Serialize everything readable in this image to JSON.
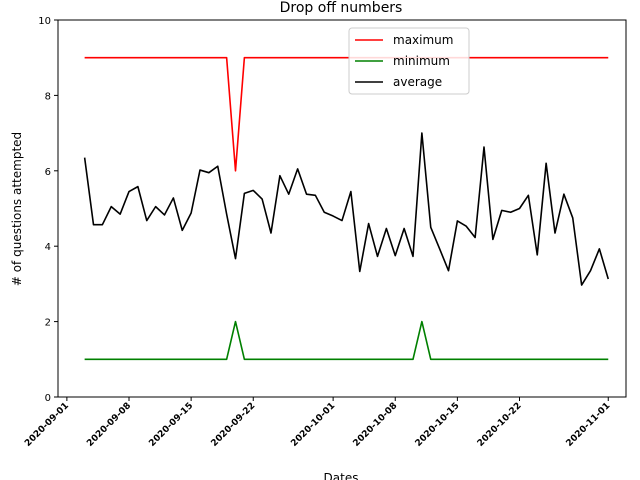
{
  "chart_data": {
    "type": "line",
    "title": "Drop off numbers",
    "xlabel": "Dates",
    "ylabel": "# of questions attempted",
    "ylim": [
      0,
      10
    ],
    "xlim": [
      "2020-08-31",
      "2020-11-03"
    ],
    "yticks": [
      "0",
      "2",
      "4",
      "6",
      "8",
      "10"
    ],
    "xticks": [
      "2020-09-01",
      "2020-09-08",
      "2020-09-15",
      "2020-09-22",
      "2020-10-01",
      "2020-10-08",
      "2020-10-15",
      "2020-10-22",
      "2020-11-01"
    ],
    "legend_position": "top-center",
    "grid": false,
    "x": [
      "2020-09-03",
      "2020-09-04",
      "2020-09-05",
      "2020-09-06",
      "2020-09-07",
      "2020-09-08",
      "2020-09-09",
      "2020-09-10",
      "2020-09-11",
      "2020-09-12",
      "2020-09-13",
      "2020-09-14",
      "2020-09-15",
      "2020-09-16",
      "2020-09-17",
      "2020-09-18",
      "2020-09-19",
      "2020-09-20",
      "2020-09-21",
      "2020-09-22",
      "2020-09-23",
      "2020-09-24",
      "2020-09-25",
      "2020-09-26",
      "2020-09-27",
      "2020-09-28",
      "2020-09-29",
      "2020-09-30",
      "2020-10-01",
      "2020-10-02",
      "2020-10-03",
      "2020-10-04",
      "2020-10-05",
      "2020-10-06",
      "2020-10-07",
      "2020-10-08",
      "2020-10-09",
      "2020-10-10",
      "2020-10-11",
      "2020-10-12",
      "2020-10-13",
      "2020-10-14",
      "2020-10-15",
      "2020-10-16",
      "2020-10-17",
      "2020-10-18",
      "2020-10-19",
      "2020-10-20",
      "2020-10-21",
      "2020-10-22",
      "2020-10-23",
      "2020-10-24",
      "2020-10-25",
      "2020-10-26",
      "2020-10-27",
      "2020-10-28",
      "2020-10-29",
      "2020-10-30",
      "2020-10-31",
      "2020-11-01"
    ],
    "series": [
      {
        "name": "maximum",
        "color": "#ff0000",
        "values": [
          9,
          9,
          9,
          9,
          9,
          9,
          9,
          9,
          9,
          9,
          9,
          9,
          9,
          9,
          9,
          9,
          9,
          6,
          9,
          9,
          9,
          9,
          9,
          9,
          9,
          9,
          9,
          9,
          9,
          9,
          9,
          9,
          9,
          9,
          9,
          9,
          9,
          9,
          9,
          9,
          9,
          9,
          9,
          9,
          9,
          9,
          9,
          9,
          9,
          9,
          9,
          9,
          9,
          9,
          9,
          9,
          9,
          9,
          9,
          9
        ]
      },
      {
        "name": "minimum",
        "color": "#008000",
        "values": [
          1,
          1,
          1,
          1,
          1,
          1,
          1,
          1,
          1,
          1,
          1,
          1,
          1,
          1,
          1,
          1,
          1,
          2,
          1,
          1,
          1,
          1,
          1,
          1,
          1,
          1,
          1,
          1,
          1,
          1,
          1,
          1,
          1,
          1,
          1,
          1,
          1,
          1,
          2,
          1,
          1,
          1,
          1,
          1,
          1,
          1,
          1,
          1,
          1,
          1,
          1,
          1,
          1,
          1,
          1,
          1,
          1,
          1,
          1,
          1
        ]
      },
      {
        "name": "average",
        "color": "#000000",
        "values": [
          6.35,
          4.57,
          4.57,
          5.05,
          4.85,
          5.45,
          5.58,
          4.68,
          5.05,
          4.83,
          5.28,
          4.42,
          4.88,
          6.02,
          5.95,
          6.12,
          4.85,
          3.67,
          5.4,
          5.48,
          5.25,
          4.35,
          5.87,
          5.38,
          6.05,
          5.38,
          5.35,
          4.9,
          4.8,
          4.68,
          5.45,
          3.33,
          4.6,
          3.73,
          4.47,
          3.75,
          4.47,
          3.73,
          7.0,
          4.5,
          3.93,
          3.35,
          4.67,
          4.53,
          4.23,
          6.63,
          4.18,
          4.95,
          4.9,
          5.0,
          5.35,
          3.77,
          6.2,
          4.35,
          5.38,
          4.75,
          2.97,
          3.35,
          3.93,
          3.13
        ]
      }
    ]
  }
}
